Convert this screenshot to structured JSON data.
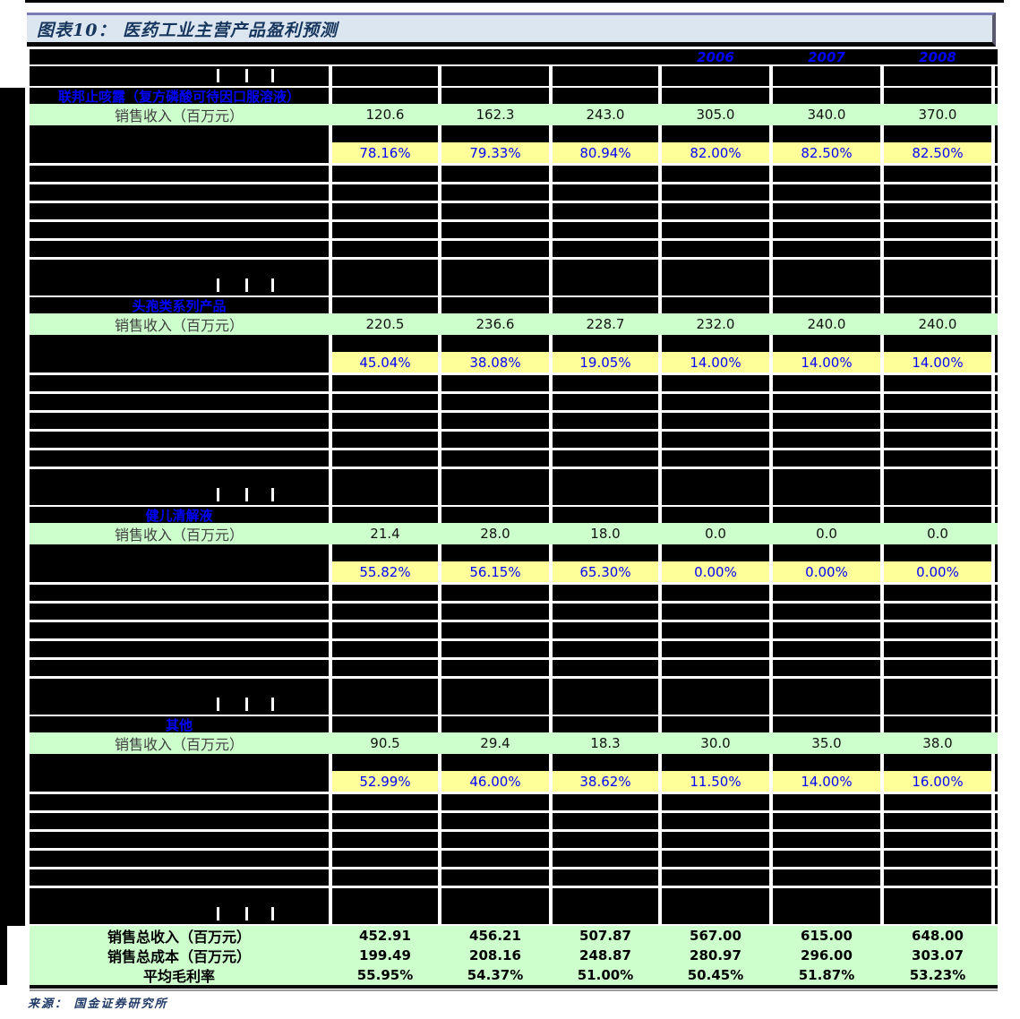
{
  "title": "图表10： 医药工业主营产品盈利预测",
  "source": "来源： 国金证券研究所",
  "colors": {
    "revenue_row_bg": "#ccffcc",
    "margin_row_bg": "#ffff99",
    "highlight_text": "#0000ff",
    "title_bg": "#dce6f1",
    "title_text": "#17365d",
    "redacted": "#000000"
  },
  "table": {
    "years": [
      "2006",
      "2007",
      "2008"
    ],
    "year_col_start": 3,
    "sections": [
      {
        "name": "联邦止咳露（复方磷酸可待因口服溶液）",
        "revenue_label": "销售收入（百万元）",
        "revenue": [
          "120.6",
          "162.3",
          "243.0",
          "305.0",
          "340.0",
          "370.0"
        ],
        "margin": [
          "78.16%",
          "79.33%",
          "80.94%",
          "82.00%",
          "82.50%",
          "82.50%"
        ]
      },
      {
        "name": "头孢类系列产品",
        "revenue_label": "销售收入（百万元）",
        "revenue": [
          "220.5",
          "236.6",
          "228.7",
          "232.0",
          "240.0",
          "240.0"
        ],
        "margin": [
          "45.04%",
          "38.08%",
          "19.05%",
          "14.00%",
          "14.00%",
          "14.00%"
        ]
      },
      {
        "name": "健儿清解液",
        "revenue_label": "销售收入（百万元）",
        "revenue": [
          "21.4",
          "28.0",
          "18.0",
          "0.0",
          "0.0",
          "0.0"
        ],
        "margin": [
          "55.82%",
          "56.15%",
          "65.30%",
          "0.00%",
          "0.00%",
          "0.00%"
        ]
      },
      {
        "name": "其他",
        "revenue_label": "销售收入（百万元）",
        "revenue": [
          "90.5",
          "29.4",
          "18.3",
          "30.0",
          "35.0",
          "38.0"
        ],
        "margin": [
          "52.99%",
          "46.00%",
          "38.62%",
          "11.50%",
          "14.00%",
          "16.00%"
        ]
      }
    ],
    "summary_rows": [
      {
        "label": "销售总收入（百万元）",
        "values": [
          "452.91",
          "456.21",
          "507.87",
          "567.00",
          "615.00",
          "648.00"
        ]
      },
      {
        "label": "销售总成本（百万元）",
        "values": [
          "199.49",
          "208.16",
          "248.87",
          "280.97",
          "296.00",
          "303.07"
        ]
      },
      {
        "label": "平均毛利率",
        "values": [
          "55.95%",
          "54.37%",
          "51.00%",
          "50.45%",
          "51.87%",
          "53.23%"
        ]
      }
    ]
  }
}
